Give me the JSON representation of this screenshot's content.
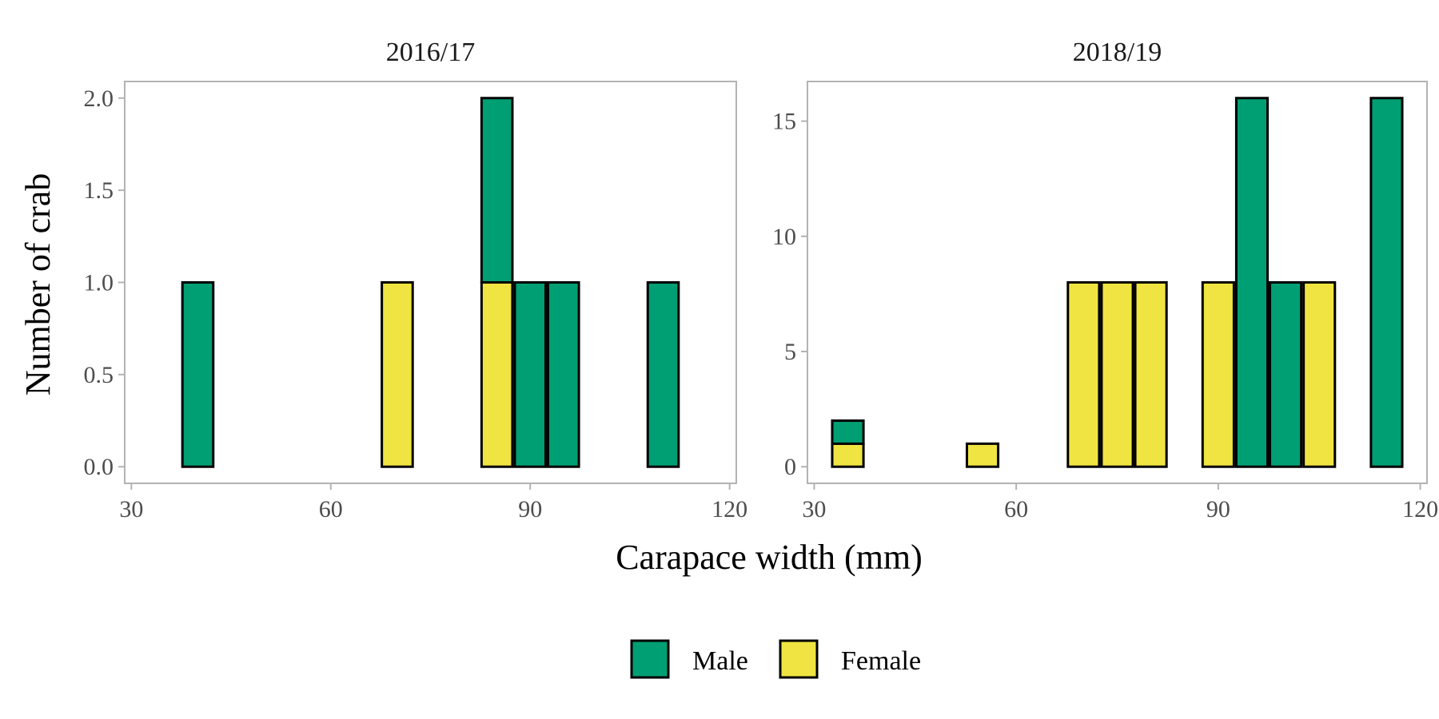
{
  "chart_data": {
    "type": "bar",
    "stacked": true,
    "xlabel": "Carapace width (mm)",
    "ylabel": "Number of crab",
    "legend": {
      "position": "bottom",
      "entries": [
        {
          "name": "Male",
          "color": "#009E73"
        },
        {
          "name": "Female",
          "color": "#F0E442"
        }
      ]
    },
    "grid": false,
    "bin_width": 5,
    "facets": [
      {
        "title": "2016/17",
        "xlim": [
          29,
          121
        ],
        "xticks": [
          30,
          60,
          90,
          120
        ],
        "ylim": [
          -0.09,
          2.09
        ],
        "yticks": [
          0.0,
          0.5,
          1.0,
          1.5,
          2.0
        ],
        "ytick_labels": [
          "0.0",
          "0.5",
          "1.0",
          "1.5",
          "2.0"
        ],
        "bins": [
          {
            "x": 40,
            "male": 1,
            "female": 0
          },
          {
            "x": 70,
            "male": 0,
            "female": 1
          },
          {
            "x": 85,
            "male": 1,
            "female": 1
          },
          {
            "x": 90,
            "male": 1,
            "female": 0
          },
          {
            "x": 95,
            "male": 1,
            "female": 0
          },
          {
            "x": 110,
            "male": 1,
            "female": 0
          }
        ]
      },
      {
        "title": "2018/19",
        "xlim": [
          29,
          121
        ],
        "xticks": [
          30,
          60,
          90,
          120
        ],
        "ylim": [
          -0.72,
          16.72
        ],
        "yticks": [
          0,
          5,
          10,
          15
        ],
        "ytick_labels": [
          "0",
          "5",
          "10",
          "15"
        ],
        "bins": [
          {
            "x": 35,
            "male": 1,
            "female": 1
          },
          {
            "x": 55,
            "male": 0,
            "female": 1
          },
          {
            "x": 70,
            "male": 0,
            "female": 8
          },
          {
            "x": 75,
            "male": 0,
            "female": 8
          },
          {
            "x": 80,
            "male": 0,
            "female": 8
          },
          {
            "x": 90,
            "male": 0,
            "female": 8
          },
          {
            "x": 95,
            "male": 16,
            "female": 0
          },
          {
            "x": 100,
            "male": 8,
            "female": 0
          },
          {
            "x": 105,
            "male": 0,
            "female": 8
          },
          {
            "x": 115,
            "male": 16,
            "female": 0
          }
        ]
      }
    ]
  }
}
